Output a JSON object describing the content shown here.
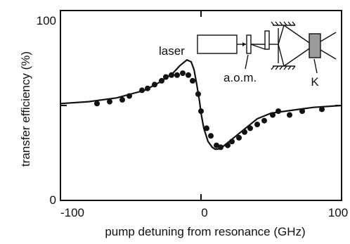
{
  "chart_data": {
    "type": "scatter",
    "xlabel": "pump detuning from resonance (GHz)",
    "ylabel": "transfer efficiency (%)",
    "xlim": [
      -100,
      100
    ],
    "ylim": [
      0,
      100
    ],
    "x_ticks": [
      -100,
      0,
      100
    ],
    "x_tick_labels": [
      "-100",
      "0",
      "100"
    ],
    "y_ticks": [
      0,
      100
    ],
    "y_tick_labels": [
      "0",
      "100"
    ],
    "grid": false,
    "series": [
      {
        "kind": "points",
        "x": [
          -74,
          -65,
          -56,
          -51,
          -42,
          -38,
          -33,
          -28,
          -25,
          -21,
          -17,
          -13,
          -9,
          -6,
          -2,
          0,
          4,
          7,
          11,
          14,
          19,
          22,
          27,
          31,
          35,
          40,
          45,
          51,
          55,
          63,
          72,
          86
        ],
        "y": [
          51,
          52,
          53,
          55,
          58,
          59,
          61,
          63,
          65,
          66,
          66,
          67,
          66,
          63,
          56,
          47,
          38,
          34,
          29,
          28,
          29,
          31,
          33,
          36,
          38,
          40,
          42,
          45,
          47,
          45,
          47,
          48
        ]
      },
      {
        "kind": "fit",
        "x": [
          -100,
          -80,
          -60,
          -40,
          -30,
          -20,
          -15,
          -10,
          -7,
          -5,
          -3,
          -1,
          0,
          2,
          5,
          8,
          10,
          12,
          15,
          20,
          25,
          30,
          40,
          50,
          60,
          70,
          80,
          100
        ],
        "y": [
          51,
          52,
          54,
          58,
          62,
          67,
          71,
          74,
          73,
          69,
          61,
          52,
          46,
          38,
          31,
          28,
          27,
          27,
          28,
          31,
          34,
          37,
          43,
          46,
          47,
          48,
          49,
          50
        ]
      }
    ],
    "inset": {
      "labels": {
        "laser": "laser",
        "aom": "a.o.m.",
        "k": "K"
      }
    }
  }
}
